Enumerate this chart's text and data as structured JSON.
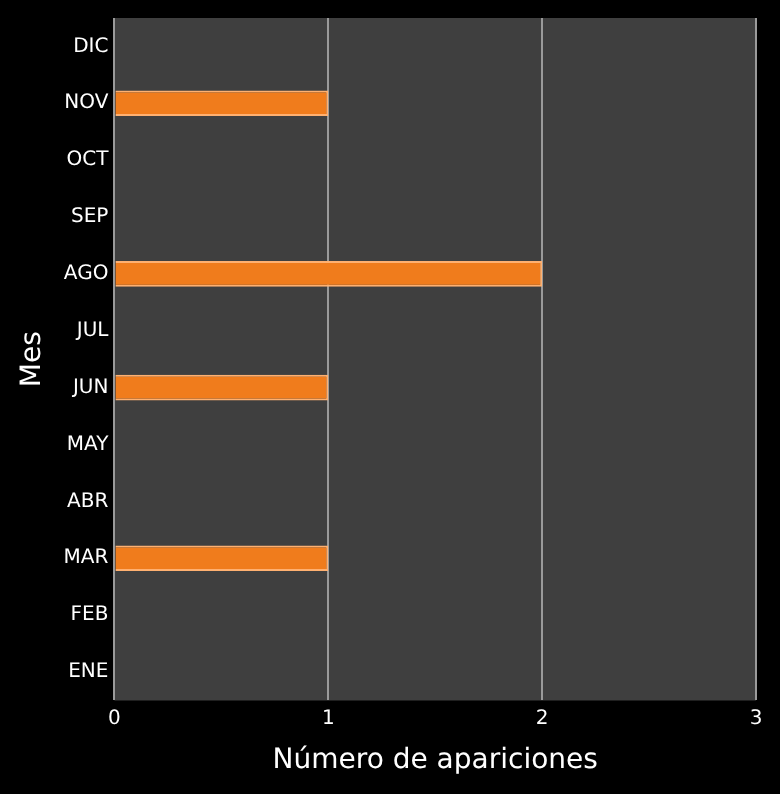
{
  "chart_data": {
    "type": "bar",
    "orientation": "horizontal",
    "categories": [
      "DIC",
      "NOV",
      "OCT",
      "SEP",
      "AGO",
      "JUL",
      "JUN",
      "MAY",
      "ABR",
      "MAR",
      "FEB",
      "ENE"
    ],
    "values": [
      0,
      1,
      0,
      0,
      2,
      0,
      1,
      0,
      0,
      1,
      0,
      0
    ],
    "color": "#f07c1c",
    "xlim": [
      0,
      3
    ],
    "xticks": [
      0,
      1,
      2,
      3
    ],
    "xlabel": "Número de apariciones",
    "ylabel": "Mes",
    "grid": "x",
    "legend": false
  }
}
